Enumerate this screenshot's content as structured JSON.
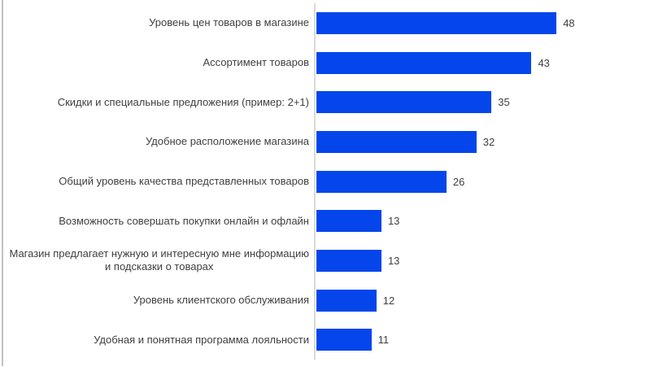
{
  "chart_data": {
    "type": "bar",
    "orientation": "horizontal",
    "title": "",
    "xlabel": "",
    "ylabel": "",
    "xlim": [
      0,
      50
    ],
    "grid": false,
    "legend": false,
    "data_labels": true,
    "categories": [
      "Уровень цен товаров в магазине",
      "Ассортимент товаров",
      "Скидки и специальные предложения (пример: 2+1)",
      "Удобное расположение магазина",
      "Общий уровень качества представленных товаров",
      "Возможность совершать покупки онлайн и офлайн",
      "Магазин предлагает нужную и интересную мне информацию\nи подсказки о товарах",
      "Уровень клиентского обслуживания",
      "Удобная и понятная программа лояльности"
    ],
    "values": [
      48,
      43,
      35,
      32,
      26,
      13,
      13,
      12,
      11
    ],
    "bar_color": "#0546ec",
    "axis_line_color": "#d9d9d9",
    "text_color": "#404040"
  },
  "frame": {
    "left_border_color": "#c2c2c6"
  }
}
